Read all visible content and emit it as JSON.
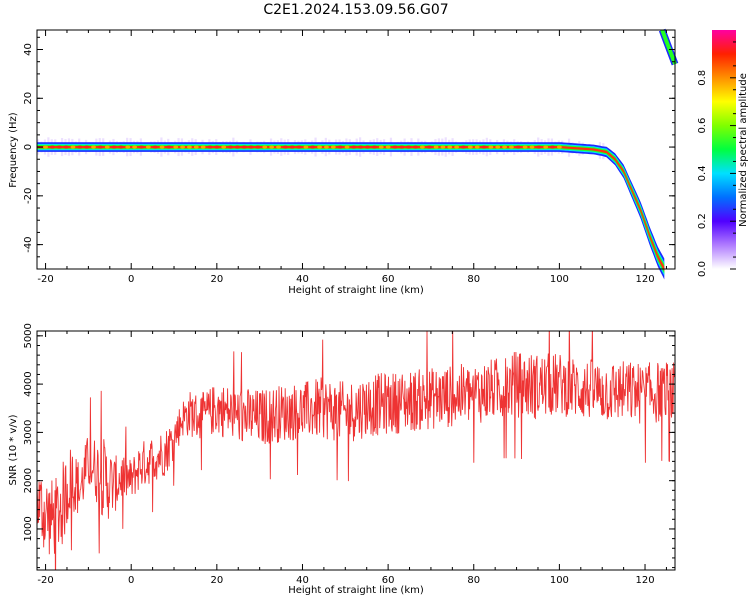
{
  "figure": {
    "title": "C2E1.2024.153.09.56.G07"
  },
  "chart_data": [
    {
      "type": "heatmap",
      "xlabel": "Height of straight line (km)",
      "ylabel": "Frequency (Hz)",
      "xlim": [
        -22,
        127
      ],
      "ylim": [
        -50,
        48
      ],
      "xticks": [
        -20,
        0,
        20,
        40,
        60,
        80,
        100,
        120
      ],
      "yticks": [
        -40,
        -20,
        0,
        20,
        40
      ],
      "colorbar": {
        "label": "Normalized spectral amplitude",
        "range": [
          0.0,
          1.0
        ],
        "ticks": [
          "0.0",
          "0.2",
          "0.4",
          "0.6",
          "0.8"
        ],
        "colors": [
          "#ffffff",
          "#b07cff",
          "#5000ff",
          "#0070ff",
          "#00e0ff",
          "#00ff40",
          "#80ff00",
          "#ffff00",
          "#ff9000",
          "#ff2000",
          "#ff00a0"
        ]
      },
      "signal_track": {
        "description_points": [
          [
            -22,
            0
          ],
          [
            100,
            0
          ],
          [
            108,
            -1
          ],
          [
            111,
            -2
          ],
          [
            113,
            -5
          ],
          [
            115,
            -10
          ],
          [
            117,
            -18
          ],
          [
            119,
            -26
          ],
          [
            121,
            -36
          ],
          [
            123,
            -45
          ],
          [
            124.5,
            -50
          ]
        ],
        "wrapped_branch": [
          [
            124,
            48
          ],
          [
            125.5,
            41
          ],
          [
            127,
            34
          ]
        ]
      }
    },
    {
      "type": "line",
      "xlabel": "Height of straight line (km)",
      "ylabel": "SNR (10 * v/v)",
      "xlim": [
        -22,
        127
      ],
      "ylim": [
        150,
        5100
      ],
      "xticks": [
        -20,
        0,
        20,
        40,
        60,
        80,
        100,
        120
      ],
      "yticks": [
        1000,
        2000,
        3000,
        4000,
        5000
      ],
      "series_color": "#ee3333",
      "series": [
        {
          "x": [
            -22,
            -20,
            -18,
            -16,
            -14,
            -12,
            -10,
            -8,
            -6,
            -4,
            -2,
            0,
            2,
            4,
            6,
            8,
            10,
            12,
            14,
            16,
            18,
            20,
            25,
            30,
            35,
            40,
            45,
            50,
            55,
            60,
            65,
            70,
            75,
            80,
            85,
            90,
            95,
            100,
            105,
            110,
            115,
            120,
            125,
            127
          ],
          "values": [
            1600,
            1300,
            1200,
            1500,
            2100,
            1800,
            2400,
            2200,
            2000,
            1900,
            2100,
            2000,
            2300,
            2400,
            2500,
            2600,
            2900,
            3300,
            3400,
            3300,
            3400,
            3500,
            3350,
            3300,
            3400,
            3450,
            3500,
            3400,
            3550,
            3600,
            3650,
            3700,
            3750,
            3800,
            3900,
            4000,
            3950,
            4000,
            3900,
            3850,
            3850,
            3800,
            3850,
            3800
          ],
          "spread": [
            700,
            900,
            800,
            900,
            700,
            600,
            600,
            700,
            900,
            600,
            500,
            450,
            500,
            500,
            500,
            500,
            450,
            400,
            500,
            500,
            500,
            550,
            600,
            600,
            600,
            600,
            650,
            650,
            650,
            650,
            650,
            650,
            650,
            650,
            650,
            700,
            700,
            650,
            650,
            650,
            650,
            650,
            650,
            650
          ]
        }
      ]
    }
  ]
}
